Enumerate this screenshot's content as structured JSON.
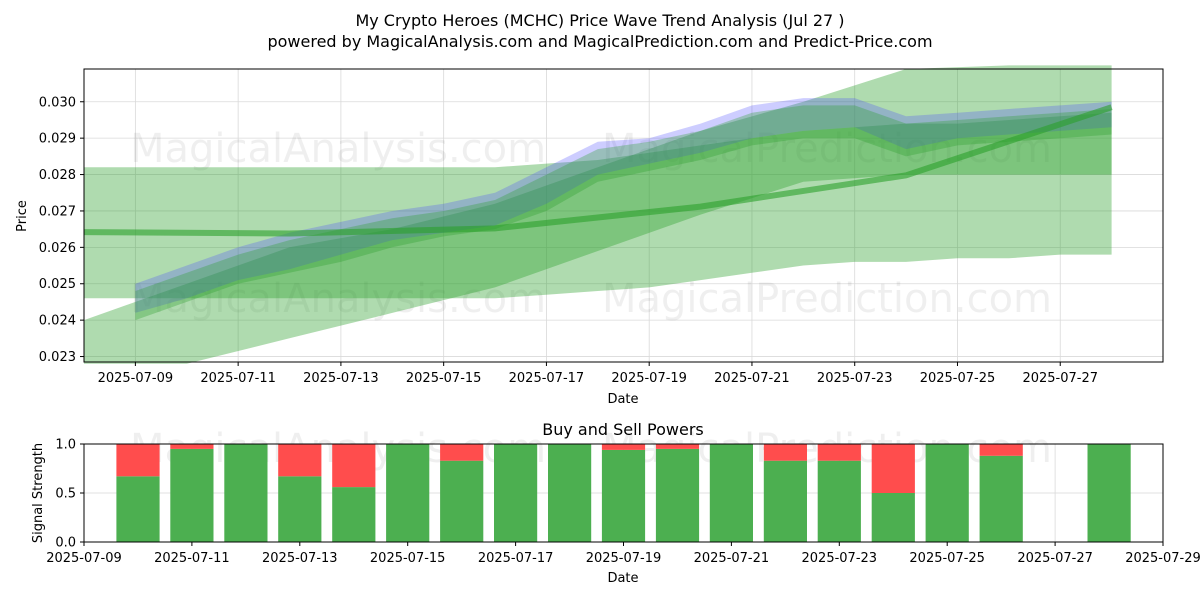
{
  "colors": {
    "band_green": "#2ca02c",
    "band_blue": "#4d4dff",
    "buy": "#4caf50",
    "sell": "#ff4d4d",
    "grid": "#d9d9d9"
  },
  "chart_data": [
    {
      "type": "area",
      "title": "My Crypto Heroes (MCHC) Price Wave Trend Analysis (Jul 27 )",
      "subtitle": "powered by MagicalAnalysis.com and MagicalPrediction.com and Predict-Price.com",
      "xlabel": "Date",
      "ylabel": "Price",
      "xlim": [
        "2025-07-08",
        "2025-07-29"
      ],
      "ylim": [
        0.02285,
        0.0309
      ],
      "x_ticks": [
        "2025-07-09",
        "2025-07-11",
        "2025-07-13",
        "2025-07-15",
        "2025-07-17",
        "2025-07-19",
        "2025-07-21",
        "2025-07-23",
        "2025-07-25",
        "2025-07-27"
      ],
      "y_ticks": [
        0.023,
        0.024,
        0.025,
        0.026,
        0.027,
        0.028,
        0.029,
        0.03
      ],
      "grid": true,
      "watermarks": [
        "MagicalAnalysis.com",
        "MagicalPrediction.com",
        "MagicalAnalysis.com",
        "MagicalPrediction.com"
      ],
      "price_waves": [
        {
          "x": [
            "2025-07-08",
            "2025-07-09",
            "2025-07-10",
            "2025-07-11",
            "2025-07-12",
            "2025-07-13",
            "2025-07-14",
            "2025-07-15",
            "2025-07-16",
            "2025-07-17",
            "2025-07-18",
            "2025-07-19",
            "2025-07-20",
            "2025-07-21",
            "2025-07-22",
            "2025-07-23",
            "2025-07-24",
            "2025-07-25",
            "2025-07-26",
            "2025-07-27",
            "2025-07-28"
          ],
          "low": [
            0.0246,
            0.0246,
            0.0246,
            0.0246,
            0.0246,
            0.0246,
            0.0246,
            0.0246,
            0.0246,
            0.0247,
            0.0248,
            0.0249,
            0.0251,
            0.0253,
            0.0255,
            0.0256,
            0.0256,
            0.0257,
            0.0257,
            0.0258,
            0.0258
          ],
          "high": [
            0.0282,
            0.0282,
            0.0282,
            0.0282,
            0.0282,
            0.0282,
            0.0282,
            0.0282,
            0.0282,
            0.0283,
            0.0284,
            0.0286,
            0.0288,
            0.029,
            0.0292,
            0.0293,
            0.0294,
            0.0294,
            0.0295,
            0.0296,
            0.0297
          ]
        },
        {
          "x": [
            "2025-07-08",
            "2025-07-10",
            "2025-07-12",
            "2025-07-14",
            "2025-07-16",
            "2025-07-18",
            "2025-07-20",
            "2025-07-22",
            "2025-07-24",
            "2025-07-26",
            "2025-07-28"
          ],
          "low": [
            0.0228,
            0.0228,
            0.0235,
            0.0242,
            0.0249,
            0.0259,
            0.0269,
            0.0278,
            0.028,
            0.028,
            0.028
          ],
          "high": [
            0.024,
            0.025,
            0.026,
            0.0265,
            0.0272,
            0.0282,
            0.0292,
            0.03,
            0.0309,
            0.031,
            0.031
          ]
        },
        {
          "x": [
            "2025-07-09",
            "2025-07-10",
            "2025-07-11",
            "2025-07-12",
            "2025-07-13",
            "2025-07-14",
            "2025-07-15",
            "2025-07-16",
            "2025-07-17",
            "2025-07-18",
            "2025-07-19",
            "2025-07-20",
            "2025-07-21",
            "2025-07-22",
            "2025-07-23",
            "2025-07-24",
            "2025-07-25",
            "2025-07-26",
            "2025-07-27",
            "2025-07-28"
          ],
          "low": [
            0.0242,
            0.0246,
            0.0251,
            0.0254,
            0.0258,
            0.0262,
            0.0264,
            0.0266,
            0.0272,
            0.028,
            0.0283,
            0.0286,
            0.029,
            0.0292,
            0.0293,
            0.0287,
            0.029,
            0.0291,
            0.0292,
            0.0293
          ],
          "high": [
            0.025,
            0.0255,
            0.026,
            0.0264,
            0.0267,
            0.027,
            0.0272,
            0.0275,
            0.0282,
            0.0289,
            0.029,
            0.0294,
            0.0299,
            0.0301,
            0.0301,
            0.0296,
            0.0297,
            0.0298,
            0.0299,
            0.03
          ]
        },
        {
          "x": [
            "2025-07-09",
            "2025-07-10",
            "2025-07-11",
            "2025-07-12",
            "2025-07-13",
            "2025-07-14",
            "2025-07-15",
            "2025-07-16",
            "2025-07-17",
            "2025-07-18",
            "2025-07-19",
            "2025-07-20",
            "2025-07-21",
            "2025-07-22",
            "2025-07-23",
            "2025-07-24",
            "2025-07-25",
            "2025-07-26",
            "2025-07-27",
            "2025-07-28"
          ],
          "low": [
            0.024,
            0.0245,
            0.025,
            0.0253,
            0.0256,
            0.026,
            0.0263,
            0.0265,
            0.027,
            0.0278,
            0.0281,
            0.0284,
            0.0288,
            0.029,
            0.029,
            0.0285,
            0.0288,
            0.0289,
            0.029,
            0.0291
          ],
          "high": [
            0.0248,
            0.0253,
            0.0258,
            0.0262,
            0.0265,
            0.0268,
            0.027,
            0.0273,
            0.028,
            0.0287,
            0.0289,
            0.0292,
            0.0297,
            0.0299,
            0.0299,
            0.0294,
            0.0295,
            0.0296,
            0.0297,
            0.0298
          ]
        }
      ],
      "trend_line": {
        "x": [
          "2025-07-08",
          "2025-07-12",
          "2025-07-16",
          "2025-07-20",
          "2025-07-24",
          "2025-07-28"
        ],
        "y": [
          0.02642,
          0.02638,
          0.02652,
          0.02712,
          0.02798,
          0.02985
        ]
      }
    },
    {
      "type": "bar",
      "title": "Buy and Sell Powers",
      "xlabel": "Date",
      "ylabel": "Signal Strength",
      "xlim": [
        "2025-07-09",
        "2025-07-29"
      ],
      "ylim": [
        0,
        1
      ],
      "x_ticks": [
        "2025-07-09",
        "2025-07-11",
        "2025-07-13",
        "2025-07-15",
        "2025-07-17",
        "2025-07-19",
        "2025-07-21",
        "2025-07-23",
        "2025-07-25",
        "2025-07-27",
        "2025-07-29"
      ],
      "y_ticks": [
        "0.0",
        "0.5",
        "1.0"
      ],
      "grid": true,
      "watermarks": [
        "MagicalAnalysis.com",
        "MagicalPrediction.com"
      ],
      "categories": [
        "2025-07-10",
        "2025-07-11",
        "2025-07-12",
        "2025-07-13",
        "2025-07-14",
        "2025-07-15",
        "2025-07-16",
        "2025-07-17",
        "2025-07-18",
        "2025-07-19",
        "2025-07-20",
        "2025-07-21",
        "2025-07-22",
        "2025-07-23",
        "2025-07-24",
        "2025-07-25",
        "2025-07-26",
        "2025-07-28"
      ],
      "series": [
        {
          "values": [
            0.67,
            0.95,
            1.0,
            0.67,
            0.56,
            1.0,
            0.83,
            1.0,
            1.0,
            0.94,
            0.95,
            1.0,
            0.83,
            0.83,
            0.5,
            1.0,
            0.88,
            1.0
          ]
        },
        {
          "values": [
            0.33,
            0.05,
            0.0,
            0.33,
            0.44,
            0.0,
            0.17,
            0.0,
            0.0,
            0.06,
            0.05,
            0.0,
            0.17,
            0.17,
            0.5,
            0.0,
            0.12,
            0.0
          ]
        }
      ]
    }
  ]
}
